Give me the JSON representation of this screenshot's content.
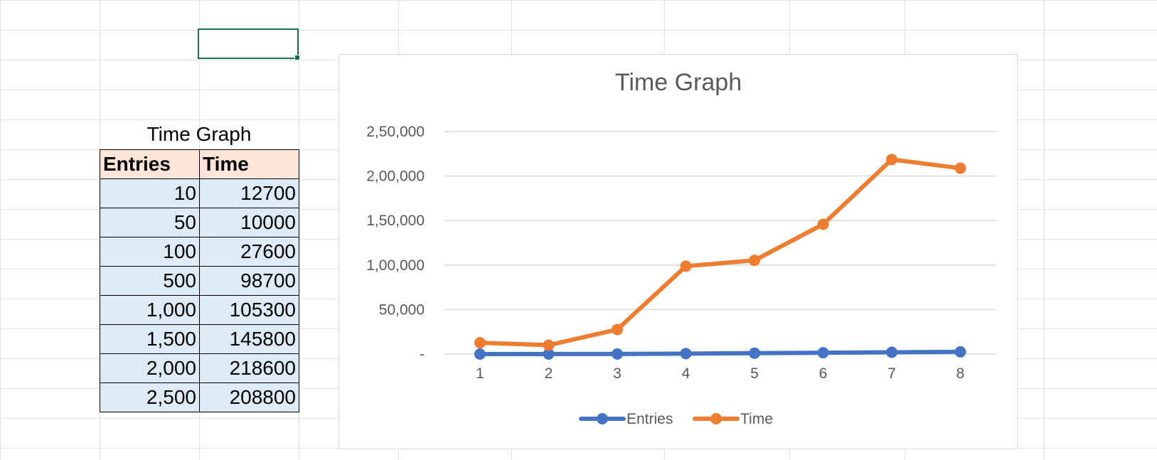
{
  "sheet": {
    "table_title": "Time Graph",
    "headers": [
      "Entries",
      "Time"
    ],
    "rows": [
      [
        "10",
        "12700"
      ],
      [
        "50",
        "10000"
      ],
      [
        "100",
        "27600"
      ],
      [
        "500",
        "98700"
      ],
      [
        "1,000",
        "105300"
      ],
      [
        "1,500",
        "145800"
      ],
      [
        "2,000",
        "218600"
      ],
      [
        "2,500",
        "208800"
      ]
    ]
  },
  "chart_data": {
    "type": "line",
    "title": "Time Graph",
    "x": [
      1,
      2,
      3,
      4,
      5,
      6,
      7,
      8
    ],
    "x_tick_labels": [
      "1",
      "2",
      "3",
      "4",
      "5",
      "6",
      "7",
      "8"
    ],
    "series": [
      {
        "name": "Entries",
        "values": [
          10,
          50,
          100,
          500,
          1000,
          1500,
          2000,
          2500
        ],
        "color": "#4472c4"
      },
      {
        "name": "Time",
        "values": [
          12700,
          10000,
          27600,
          98700,
          105300,
          145800,
          218600,
          208800
        ],
        "color": "#ed7d31"
      }
    ],
    "ylim": [
      0,
      250000
    ],
    "y_ticks": [
      0,
      50000,
      100000,
      150000,
      200000,
      250000
    ],
    "y_tick_labels": [
      "-",
      "50,000",
      "1,00,000",
      "1,50,000",
      "2,00,000",
      "2,50,000"
    ],
    "grid": true,
    "legend": "bottom"
  }
}
